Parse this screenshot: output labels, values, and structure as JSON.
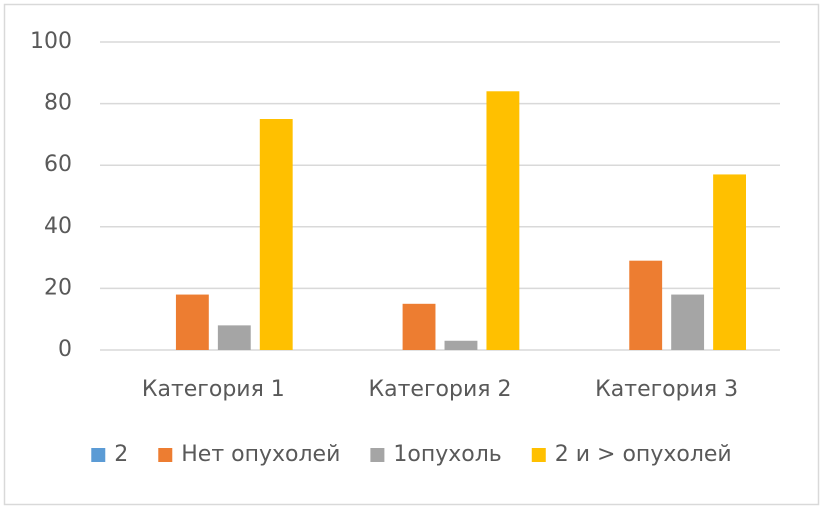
{
  "chart_data": {
    "type": "bar",
    "categories": [
      "Категория 1",
      "Категория 2",
      "Категория 3"
    ],
    "series": [
      {
        "name": "2",
        "color": "#5b9bd5",
        "values": [
          0,
          0,
          0
        ]
      },
      {
        "name": "Нет опухолей",
        "color": "#ed7d31",
        "values": [
          18,
          15,
          29
        ]
      },
      {
        "name": "1опухоль",
        "color": "#a5a5a5",
        "values": [
          8,
          3,
          18
        ]
      },
      {
        "name": "2 и > опухолей",
        "color": "#ffc000",
        "values": [
          75,
          84,
          57
        ]
      }
    ],
    "ylim": [
      0,
      100
    ],
    "yticks": [
      0,
      20,
      40,
      60,
      80,
      100
    ],
    "grid": true,
    "legend": "bottom"
  }
}
